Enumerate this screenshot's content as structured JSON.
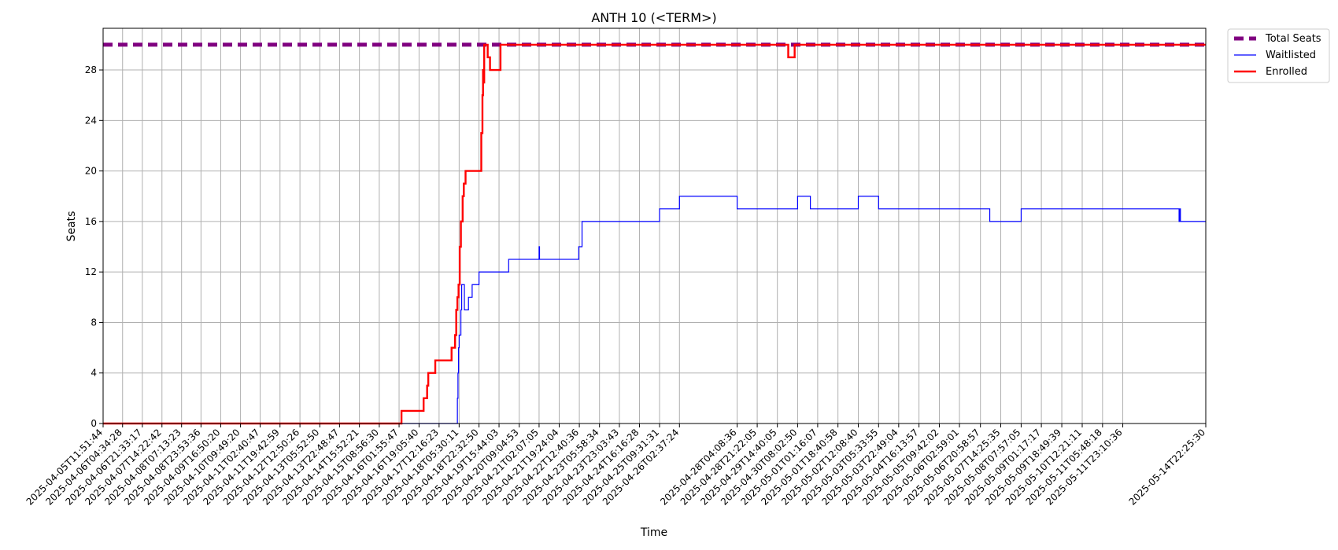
{
  "chart_data": {
    "type": "line",
    "title": "ANTH 10 (<TERM>)",
    "xlabel": "Time",
    "ylabel": "Seats",
    "x_domain": [
      "2025-04-05T11:51:44",
      "2025-05-14T22:25:30"
    ],
    "ylim": [
      0,
      31.3
    ],
    "yticks": [
      0,
      4,
      8,
      12,
      16,
      20,
      24,
      28
    ],
    "xticks": [
      "2025-04-05T11:51:44",
      "2025-04-06T04:34:28",
      "2025-04-06T21:33:17",
      "2025-04-07T14:22:42",
      "2025-04-08T07:13:23",
      "2025-04-08T23:53:36",
      "2025-04-09T16:50:20",
      "2025-04-10T09:49:20",
      "2025-04-11T02:40:47",
      "2025-04-11T19:42:59",
      "2025-04-12T12:50:26",
      "2025-04-13T05:52:50",
      "2025-04-13T22:48:47",
      "2025-04-14T15:52:21",
      "2025-04-15T08:56:30",
      "2025-04-16T01:55:47",
      "2025-04-16T19:05:40",
      "2025-04-17T12:16:23",
      "2025-04-18T05:30:11",
      "2025-04-18T22:32:50",
      "2025-04-19T15:44:03",
      "2025-04-20T09:04:53",
      "2025-04-21T02:07:05",
      "2025-04-21T19:24:04",
      "2025-04-22T12:40:36",
      "2025-04-23T05:58:34",
      "2025-04-23T23:03:43",
      "2025-04-24T16:16:28",
      "2025-04-25T09:31:31",
      "2025-04-26T02:37:24",
      "2025-04-28T04:08:36",
      "2025-04-28T21:22:05",
      "2025-04-29T14:40:05",
      "2025-04-30T08:02:50",
      "2025-05-01T01:16:07",
      "2025-05-01T18:40:58",
      "2025-05-02T12:08:40",
      "2025-05-03T05:33:55",
      "2025-05-03T22:49:04",
      "2025-05-04T16:13:57",
      "2025-05-05T09:42:02",
      "2025-05-06T02:59:01",
      "2025-05-06T20:58:57",
      "2025-05-07T14:25:35",
      "2025-05-08T07:57:05",
      "2025-05-09T01:17:17",
      "2025-05-09T18:49:39",
      "2025-05-10T12:21:11",
      "2025-05-11T05:48:18",
      "2025-05-11T23:10:36",
      "2025-05-14T22:25:30"
    ],
    "grid": true,
    "legend_position": "outside-top-right",
    "series": [
      {
        "name": "Total Seats",
        "color": "#800080",
        "style": "dashed",
        "step": true,
        "points": [
          [
            "2025-04-05T11:51:44",
            30
          ],
          [
            "2025-05-14T22:25:30",
            30
          ]
        ]
      },
      {
        "name": "Waitlisted",
        "color": "#0000ff",
        "style": "solid",
        "step": true,
        "points": [
          [
            "2025-04-05T11:51:44",
            0
          ],
          [
            "2025-04-18T04:00:00",
            2
          ],
          [
            "2025-04-18T04:30:00",
            4
          ],
          [
            "2025-04-18T05:00:00",
            6
          ],
          [
            "2025-04-18T05:30:11",
            7
          ],
          [
            "2025-04-18T07:00:00",
            9
          ],
          [
            "2025-04-18T07:40:00",
            11
          ],
          [
            "2025-04-18T10:00:00",
            9
          ],
          [
            "2025-04-18T13:30:00",
            10
          ],
          [
            "2025-04-18T16:40:00",
            11
          ],
          [
            "2025-04-18T22:32:50",
            12
          ],
          [
            "2025-04-20T00:00:00",
            13
          ],
          [
            "2025-04-21T02:07:00",
            14
          ],
          [
            "2025-04-21T02:30:00",
            13
          ],
          [
            "2025-04-22T12:10:00",
            14
          ],
          [
            "2025-04-22T15:00:00",
            16
          ],
          [
            "2025-04-25T09:31:31",
            17
          ],
          [
            "2025-04-26T02:37:24",
            18
          ],
          [
            "2025-04-28T04:08:36",
            17
          ],
          [
            "2025-04-30T08:02:50",
            18
          ],
          [
            "2025-04-30T19:00:00",
            17
          ],
          [
            "2025-05-02T12:08:40",
            18
          ],
          [
            "2025-05-03T05:33:55",
            17
          ],
          [
            "2025-05-07T05:00:00",
            16
          ],
          [
            "2025-05-08T07:57:05",
            17
          ],
          [
            "2025-05-13T23:30:00",
            16
          ],
          [
            "2025-05-14T00:10:00",
            17
          ],
          [
            "2025-05-14T00:40:00",
            16
          ],
          [
            "2025-05-14T22:25:30",
            16
          ]
        ]
      },
      {
        "name": "Enrolled",
        "color": "#ff0000",
        "style": "solid",
        "step": true,
        "points": [
          [
            "2025-04-05T11:51:44",
            0
          ],
          [
            "2025-04-16T04:00:00",
            1
          ],
          [
            "2025-04-16T23:00:00",
            2
          ],
          [
            "2025-04-17T02:00:00",
            3
          ],
          [
            "2025-04-17T03:00:00",
            4
          ],
          [
            "2025-04-17T09:00:00",
            5
          ],
          [
            "2025-04-17T23:00:00",
            6
          ],
          [
            "2025-04-18T02:00:00",
            7
          ],
          [
            "2025-04-18T03:00:00",
            9
          ],
          [
            "2025-04-18T04:00:00",
            10
          ],
          [
            "2025-04-18T05:00:00",
            11
          ],
          [
            "2025-04-18T06:00:00",
            14
          ],
          [
            "2025-04-18T07:00:00",
            16
          ],
          [
            "2025-04-18T08:30:00",
            18
          ],
          [
            "2025-04-18T09:30:00",
            19
          ],
          [
            "2025-04-18T11:00:00",
            20
          ],
          [
            "2025-04-19T00:30:00",
            23
          ],
          [
            "2025-04-19T01:30:00",
            26
          ],
          [
            "2025-04-19T02:00:00",
            28
          ],
          [
            "2025-04-19T02:40:00",
            27
          ],
          [
            "2025-04-19T03:00:00",
            30
          ],
          [
            "2025-04-19T06:00:00",
            29
          ],
          [
            "2025-04-19T08:00:00",
            28
          ],
          [
            "2025-04-19T17:00:00",
            30
          ],
          [
            "2025-04-30T00:00:00",
            29
          ],
          [
            "2025-04-30T05:30:00",
            30
          ],
          [
            "2025-05-14T22:25:30",
            30
          ]
        ]
      }
    ]
  }
}
